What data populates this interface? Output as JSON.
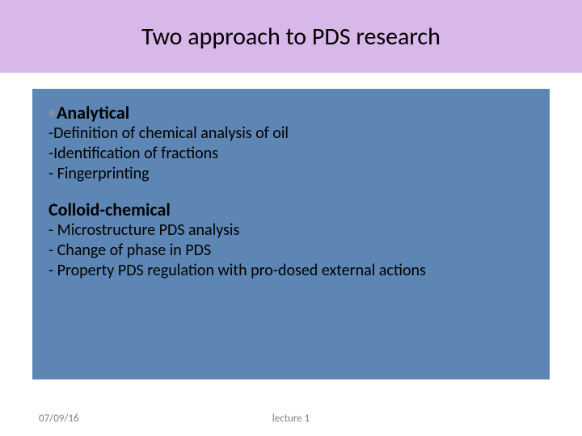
{
  "colors": {
    "title_bg": "#d7b8e8",
    "content_bg": "#5d86b4",
    "bullet": "#7b8ea8",
    "footer_text": "#7f7f7f"
  },
  "title": "Two approach to PDS  research",
  "section1": {
    "heading": "Analytical",
    "lines": [
      "-Definition of chemical analysis of oil",
      "-Identification of fractions",
      "- Fingerprinting"
    ]
  },
  "section2": {
    "heading": "Colloid-chemical",
    "lines": [
      "- Microstructure PDS analysis",
      "- Change of phase in PDS",
      "- Property PDS regulation with pro-dosed external actions"
    ]
  },
  "footer": {
    "date": "07/09/16",
    "center": "lecture 1"
  }
}
